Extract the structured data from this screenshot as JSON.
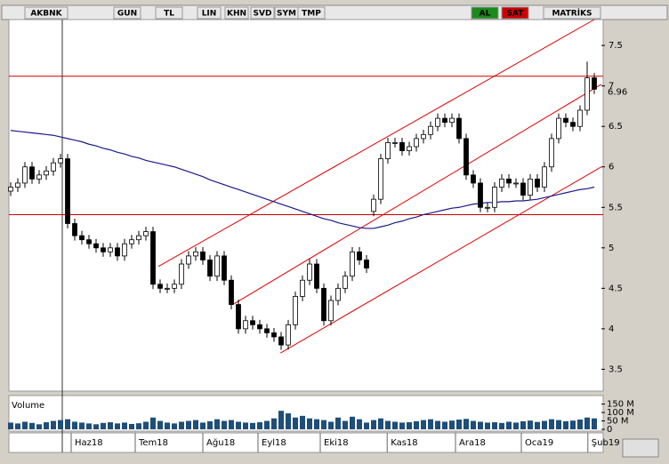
{
  "chart_data": {
    "type": "candlestick",
    "toolbar": [
      "AKBNK",
      "GUN",
      "TL",
      "LIN",
      "KHN",
      "SVD",
      "SYM",
      "TMP",
      "AL",
      "SAT",
      "MATRİKS"
    ],
    "ylim": [
      3.23,
      7.82
    ],
    "yticks": [
      3.5,
      4,
      4.5,
      5,
      5.5,
      6,
      6.5,
      7,
      7.5
    ],
    "last_price": 6.96,
    "xticks": [
      {
        "value": 8.5,
        "label": "Haz18"
      },
      {
        "value": 17.5,
        "label": "Tem18"
      },
      {
        "value": 27,
        "label": "Ağu18"
      },
      {
        "value": 34.75,
        "label": "Eyl18"
      },
      {
        "value": 43.5,
        "label": "Eki18"
      },
      {
        "value": 52.9,
        "label": "Kas18"
      },
      {
        "value": 62.5,
        "label": "Ara18"
      },
      {
        "value": 71.75,
        "label": "Oca19"
      },
      {
        "value": 81.1,
        "label": "Şub19"
      }
    ],
    "open": [
      5.7,
      5.75,
      5.8,
      6.0,
      5.85,
      5.9,
      5.95,
      6.05,
      6.1,
      5.3,
      5.15,
      5.1,
      5.05,
      5.0,
      4.95,
      5.0,
      4.9,
      5.05,
      5.1,
      5.15,
      5.2,
      4.55,
      4.5,
      4.5,
      4.55,
      4.8,
      4.9,
      4.95,
      4.85,
      4.65,
      4.9,
      4.6,
      4.3,
      4.0,
      4.1,
      4.05,
      4.0,
      3.95,
      3.9,
      3.8,
      4.05,
      4.4,
      4.6,
      4.8,
      4.5,
      4.1,
      4.35,
      4.5,
      4.65,
      4.95,
      4.85,
      5.45,
      5.6,
      6.1,
      6.3,
      6.3,
      6.2,
      6.25,
      6.35,
      6.4,
      6.5,
      6.6,
      6.55,
      6.6,
      6.35,
      5.9,
      5.8,
      5.5,
      5.5,
      5.75,
      5.85,
      5.8,
      5.8,
      5.65,
      5.85,
      5.75,
      6.0,
      6.35,
      6.6,
      6.55,
      6.5,
      6.7,
      7.1
    ],
    "high": [
      5.81,
      5.86,
      6.06,
      6.06,
      5.96,
      6.01,
      6.11,
      6.16,
      6.16,
      5.36,
      5.21,
      5.16,
      5.11,
      5.06,
      5.06,
      5.06,
      5.11,
      5.16,
      5.21,
      5.26,
      5.26,
      4.61,
      4.56,
      4.61,
      4.86,
      4.96,
      5.01,
      5.01,
      4.91,
      4.96,
      4.96,
      4.66,
      4.36,
      4.16,
      4.16,
      4.11,
      4.06,
      4.01,
      3.96,
      4.11,
      4.46,
      4.66,
      4.86,
      4.86,
      4.56,
      4.41,
      4.56,
      4.71,
      5.01,
      5.01,
      4.91,
      5.66,
      6.16,
      6.36,
      6.36,
      6.36,
      6.31,
      6.41,
      6.46,
      6.56,
      6.66,
      6.66,
      6.66,
      6.66,
      6.41,
      5.96,
      5.86,
      5.56,
      5.81,
      5.91,
      5.91,
      5.86,
      5.86,
      5.91,
      5.91,
      6.06,
      6.41,
      6.66,
      6.66,
      6.61,
      6.76,
      7.3,
      7.16
    ],
    "low": [
      5.64,
      5.69,
      5.74,
      5.79,
      5.79,
      5.84,
      5.89,
      5.99,
      5.24,
      5.09,
      5.04,
      4.99,
      4.94,
      4.89,
      4.89,
      4.84,
      4.84,
      4.99,
      5.04,
      5.09,
      4.49,
      4.44,
      4.44,
      4.44,
      4.49,
      4.74,
      4.84,
      4.79,
      4.59,
      4.59,
      4.54,
      4.24,
      3.94,
      3.94,
      3.99,
      3.94,
      3.89,
      3.84,
      3.74,
      3.74,
      3.99,
      4.34,
      4.54,
      4.44,
      4.04,
      4.04,
      4.29,
      4.44,
      4.59,
      4.79,
      4.69,
      5.39,
      5.54,
      6.04,
      6.24,
      6.14,
      6.14,
      6.19,
      6.29,
      6.34,
      6.44,
      6.49,
      6.49,
      6.29,
      5.84,
      5.74,
      5.44,
      5.44,
      5.44,
      5.69,
      5.74,
      5.74,
      5.59,
      5.59,
      5.69,
      5.69,
      5.94,
      6.29,
      6.49,
      6.44,
      6.44,
      6.64,
      6.9
    ],
    "close": [
      5.75,
      5.8,
      6.0,
      5.85,
      5.9,
      5.95,
      6.05,
      6.1,
      5.3,
      5.15,
      5.1,
      5.05,
      5.0,
      4.95,
      5.0,
      4.9,
      5.05,
      5.1,
      5.15,
      5.2,
      4.55,
      4.5,
      4.5,
      4.55,
      4.8,
      4.9,
      4.95,
      4.85,
      4.65,
      4.9,
      4.6,
      4.3,
      4.0,
      4.1,
      4.05,
      4.0,
      3.95,
      3.9,
      3.8,
      4.05,
      4.4,
      4.6,
      4.8,
      4.5,
      4.1,
      4.35,
      4.5,
      4.65,
      4.95,
      4.85,
      4.75,
      5.6,
      6.1,
      6.3,
      6.3,
      6.2,
      6.25,
      6.35,
      6.4,
      6.5,
      6.6,
      6.55,
      6.6,
      6.35,
      5.9,
      5.8,
      5.5,
      5.5,
      5.75,
      5.85,
      5.8,
      5.8,
      5.65,
      5.85,
      5.75,
      6.0,
      6.35,
      6.6,
      6.55,
      6.5,
      6.7,
      7.1,
      6.96
    ],
    "ma": {
      "color": "#1a1a8c",
      "values": [
        6.45,
        6.44,
        6.43,
        6.42,
        6.41,
        6.4,
        6.39,
        6.37,
        6.35,
        6.33,
        6.31,
        6.28,
        6.26,
        6.23,
        6.21,
        6.18,
        6.16,
        6.13,
        6.11,
        6.08,
        6.06,
        6.04,
        6.02,
        6.0,
        5.97,
        5.94,
        5.91,
        5.88,
        5.84,
        5.81,
        5.78,
        5.75,
        5.72,
        5.69,
        5.66,
        5.63,
        5.6,
        5.57,
        5.54,
        5.51,
        5.48,
        5.45,
        5.42,
        5.39,
        5.36,
        5.34,
        5.31,
        5.29,
        5.27,
        5.25,
        5.24,
        5.24,
        5.26,
        5.28,
        5.31,
        5.33,
        5.36,
        5.38,
        5.41,
        5.43,
        5.45,
        5.47,
        5.49,
        5.5,
        5.52,
        5.54,
        5.55,
        5.56,
        5.56,
        5.57,
        5.57,
        5.58,
        5.58,
        5.59,
        5.6,
        5.62,
        5.64,
        5.66,
        5.68,
        5.7,
        5.72,
        5.73,
        5.75
      ]
    },
    "hlines": {
      "color": "#cc0000",
      "values": [
        7.12,
        5.41
      ]
    },
    "trendlines": {
      "color": "#dd0000",
      "lines": [
        {
          "x": [
            20.75,
            82
          ],
          "values": [
            4.77,
            7.82
          ]
        },
        {
          "x": [
            31.4,
            83
          ],
          "values": [
            4.31,
            7.02
          ]
        },
        {
          "x": [
            37.9,
            83
          ],
          "values": [
            3.7,
            6.0
          ]
        }
      ]
    },
    "volume": {
      "title": "Volume",
      "color": "#1f4e79",
      "ylim": [
        0,
        190
      ],
      "yticks": [
        {
          "value": 0,
          "label": "0"
        },
        {
          "value": 50,
          "label": "50 M"
        },
        {
          "value": 100,
          "label": "100 M"
        },
        {
          "value": 150,
          "label": "150 M"
        }
      ],
      "values": [
        40,
        35,
        45,
        38,
        30,
        42,
        50,
        55,
        60,
        45,
        40,
        35,
        30,
        38,
        42,
        35,
        40,
        32,
        36,
        45,
        70,
        50,
        40,
        35,
        45,
        50,
        55,
        40,
        48,
        60,
        50,
        55,
        45,
        40,
        38,
        42,
        50,
        65,
        110,
        95,
        70,
        80,
        65,
        60,
        55,
        45,
        70,
        50,
        75,
        60,
        40,
        55,
        65,
        50,
        45,
        40,
        42,
        48,
        55,
        60,
        50,
        45,
        52,
        58,
        62,
        50,
        45,
        40,
        42,
        38,
        45,
        40,
        48,
        52,
        44,
        50,
        60,
        55,
        48,
        52,
        58,
        70,
        65
      ]
    }
  }
}
